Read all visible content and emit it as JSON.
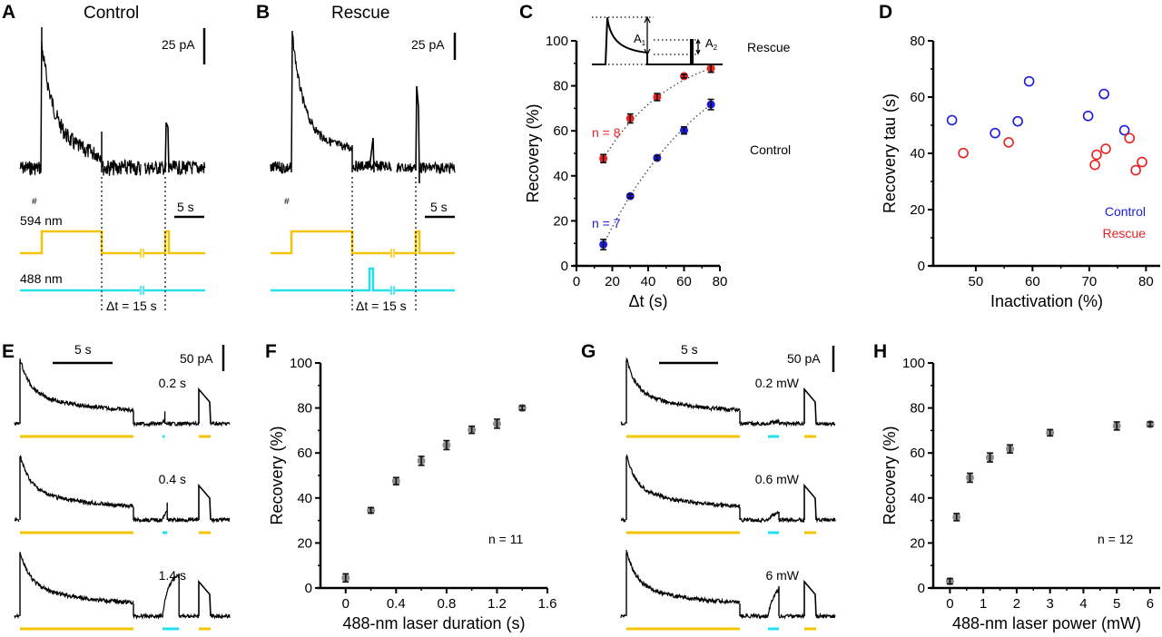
{
  "panels": {
    "A": {
      "label": "A",
      "title": "Control",
      "scale_current": "25 pA",
      "scale_time": "5 s",
      "hash": "#",
      "laser1": "594 nm",
      "laser2": "488 nm",
      "dt_label": "Δt = 15 s"
    },
    "B": {
      "label": "B",
      "title": "Rescue",
      "scale_current": "25 pA",
      "scale_time": "5 s",
      "hash": "#",
      "dt_label": "Δt = 15 s"
    },
    "C": {
      "label": "C",
      "inset_a1": "A",
      "inset_a1_sub": "1",
      "inset_a2": "A",
      "inset_a2_sub": "2"
    },
    "D": {
      "label": "D"
    },
    "E": {
      "label": "E",
      "scale_time": "5 s",
      "scale_current": "50 pA",
      "traces": [
        {
          "label": "0.2 s",
          "blue": 0.2
        },
        {
          "label": "0.4 s",
          "blue": 0.4
        },
        {
          "label": "1.4 s",
          "blue": 1.4
        }
      ]
    },
    "F": {
      "label": "F"
    },
    "G": {
      "label": "G",
      "scale_time": "5 s",
      "scale_current": "50 pA",
      "traces": [
        {
          "label": "0.2 mW",
          "amp": 0.05
        },
        {
          "label": "0.6 mW",
          "amp": 0.15
        },
        {
          "label": "6 mW",
          "amp": 0.55
        }
      ]
    },
    "H": {
      "label": "H"
    }
  },
  "colors": {
    "yellow": "#f5c400",
    "cyan": "#22e0f0",
    "red": "#e82020",
    "blue": "#1a1ae0",
    "gray": "#8c8c8c"
  },
  "chart_data": [
    {
      "id": "C",
      "type": "scatter",
      "title": "",
      "xlabel": "Δt (s)",
      "ylabel": "Recovery (%)",
      "xlim": [
        0,
        80
      ],
      "ylim": [
        0,
        100
      ],
      "xticks": [
        0,
        20,
        40,
        60,
        80
      ],
      "yticks": [
        0,
        20,
        40,
        60,
        80,
        100
      ],
      "series": [
        {
          "name": "Rescue",
          "color": "#e82020",
          "n_label": "n = 8",
          "x": [
            15,
            30,
            45,
            60,
            75
          ],
          "y": [
            47.7,
            65.5,
            75,
            84.3,
            87.8
          ],
          "err": [
            1.8,
            2.0,
            1.6,
            0.8,
            1.8
          ]
        },
        {
          "name": "Control",
          "color": "#1a1ae0",
          "n_label": "n = 7",
          "x": [
            15,
            30,
            45,
            60,
            75
          ],
          "y": [
            9.5,
            31,
            48,
            60.2,
            71.7
          ],
          "err": [
            2.3,
            0.8,
            1.0,
            1.6,
            2.3
          ]
        }
      ]
    },
    {
      "id": "D",
      "type": "scatter",
      "title": "",
      "xlabel": "Inactivation (%)",
      "ylabel": "Recovery tau (s)",
      "xlim": [
        42.5,
        82.5
      ],
      "ylim": [
        0,
        80
      ],
      "xticks": [
        50,
        60,
        70,
        80
      ],
      "yticks": [
        0,
        20,
        40,
        60,
        80
      ],
      "legend": "bottom-right",
      "series": [
        {
          "name": "Control",
          "color": "#1a1ae0",
          "x": [
            45.8,
            53.4,
            57.4,
            59.4,
            69.8,
            72.6,
            76.2
          ],
          "y": [
            51.8,
            47.2,
            51.4,
            65.6,
            53.3,
            61.1,
            48.2
          ]
        },
        {
          "name": "Rescue",
          "color": "#e82020",
          "x": [
            47.8,
            55.8,
            71,
            71.3,
            72.9,
            77.1,
            78.2,
            79.3
          ],
          "y": [
            40.1,
            43.9,
            35.9,
            39.5,
            41.6,
            45.4,
            34,
            36.9
          ]
        }
      ]
    },
    {
      "id": "F",
      "type": "scatter",
      "title": "",
      "xlabel": "488-nm laser duration (s)",
      "ylabel": "Recovery (%)",
      "xlim": [
        -0.2,
        1.6
      ],
      "ylim": [
        0,
        100
      ],
      "xticks": [
        0,
        0.4,
        0.8,
        1.2,
        1.6
      ],
      "yticks": [
        0,
        20,
        40,
        60,
        80,
        100
      ],
      "annotation": "n = 11",
      "series": [
        {
          "name": "Recovery",
          "color": "#8c8c8c",
          "x": [
            0,
            0.2,
            0.4,
            0.6,
            0.8,
            1.0,
            1.2,
            1.4
          ],
          "y": [
            4.5,
            34.5,
            47.5,
            56.5,
            63.5,
            70.3,
            73,
            80
          ],
          "err": [
            1.8,
            1.2,
            1.6,
            2.0,
            2.0,
            1.6,
            2.0,
            1.0
          ]
        }
      ]
    },
    {
      "id": "H",
      "type": "scatter",
      "title": "",
      "xlabel": "488-nm laser power (mW)",
      "ylabel": "Recovery (%)",
      "xlim": [
        -0.5,
        6.3
      ],
      "ylim": [
        0,
        100
      ],
      "xticks": [
        0,
        1,
        2,
        3,
        4,
        5,
        6
      ],
      "yticks": [
        0,
        20,
        40,
        60,
        80,
        100
      ],
      "annotation": "n = 12",
      "series": [
        {
          "name": "Recovery",
          "color": "#8c8c8c",
          "x": [
            0,
            0.2,
            0.6,
            1.2,
            1.8,
            3,
            5,
            6
          ],
          "y": [
            3,
            31.5,
            49,
            58,
            61.8,
            69,
            72,
            72.8
          ],
          "err": [
            1.2,
            1.6,
            2.0,
            2.0,
            1.8,
            1.4,
            1.8,
            1.0
          ]
        }
      ]
    }
  ]
}
